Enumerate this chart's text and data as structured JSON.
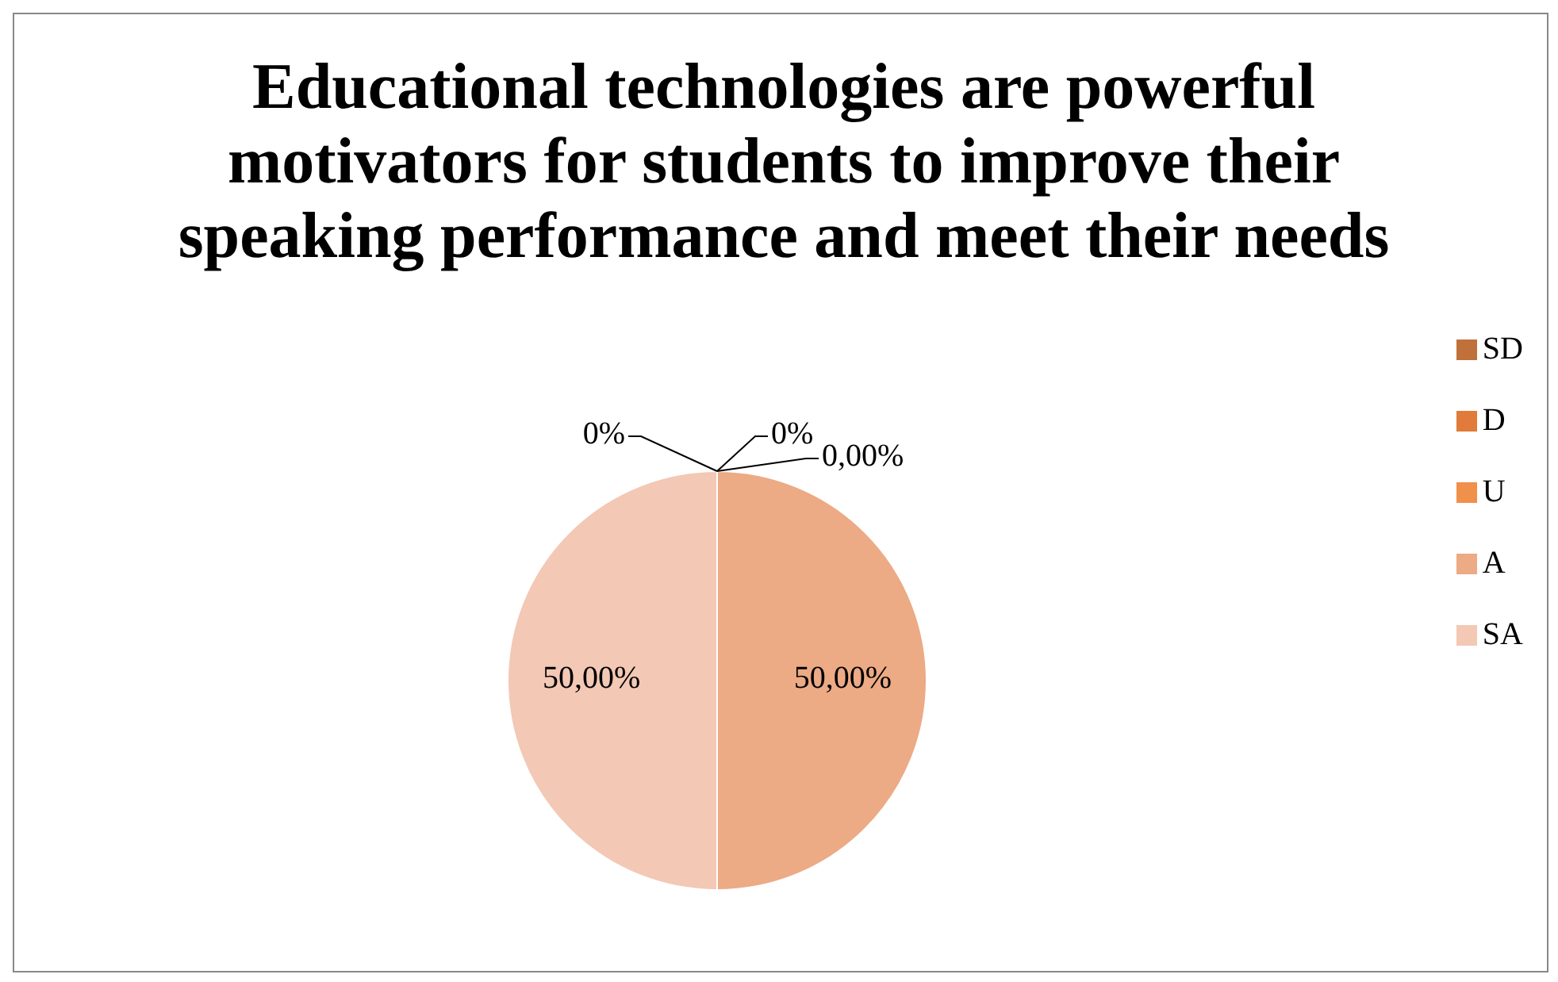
{
  "chart_data": {
    "type": "pie",
    "title": "Educational technologies are powerful motivators for students to improve their speaking performance and meet their needs",
    "categories": [
      "SD",
      "D",
      "U",
      "A",
      "SA"
    ],
    "values": [
      0,
      0,
      0,
      50,
      50
    ],
    "colors": [
      "#c0703a",
      "#e07b39",
      "#f0904a",
      "#ecaa85",
      "#f3c8b5"
    ],
    "value_labels": [
      "0%",
      "0%",
      "0,00%",
      "50,00%",
      "50,00%"
    ],
    "legend": "right"
  }
}
